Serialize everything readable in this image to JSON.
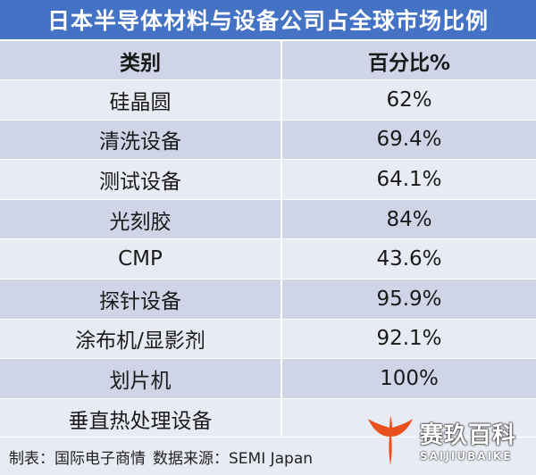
{
  "title": "日本半导体材料与设备公司占全球市场比例",
  "chart_data": {
    "type": "table",
    "columns": [
      "类别",
      "百分比%"
    ],
    "rows": [
      {
        "category": "硅晶圆",
        "value": "62%"
      },
      {
        "category": "清洗设备",
        "value": "69.4%"
      },
      {
        "category": "测试设备",
        "value": "64.1%"
      },
      {
        "category": "光刻胶",
        "value": "84%"
      },
      {
        "category": "CMP",
        "value": "43.6%"
      },
      {
        "category": "探针设备",
        "value": "95.9%"
      },
      {
        "category": "涂布机/显影剂",
        "value": "92.1%"
      },
      {
        "category": "划片机",
        "value": "100%"
      },
      {
        "category": "垂直热处理设备",
        "value": ""
      }
    ]
  },
  "footer": {
    "maker": "制表：国际电子商情",
    "source": "数据来源：SEMI Japan"
  },
  "watermark": {
    "cn": "赛玖百科",
    "en": "SAIJIUBAIKE"
  },
  "colors": {
    "header": "#4472c4",
    "row_dark": "#cfd5e7",
    "row_light": "#e8ebf4",
    "logo": "#e8501e"
  }
}
